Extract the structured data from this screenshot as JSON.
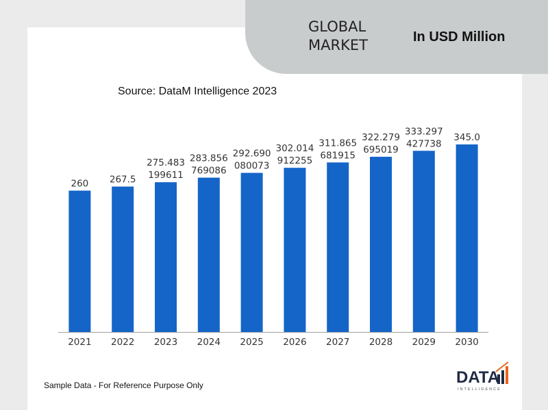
{
  "header": {
    "title_line1": "GLOBAL",
    "title_line2": "MARKET",
    "unit_label": "In USD Million"
  },
  "source_label": "Source: DataM Intelligence 2023",
  "footnote": "Sample Data - For Reference Purpose Only",
  "logo": {
    "text": "DATA",
    "subtext": "INTELLIGENCE",
    "icon": "bar-chart-icon"
  },
  "colors": {
    "bar": "#1565c8",
    "background": "#ebebeb",
    "pill": "#c9cccd",
    "logo_dark": "#1f2a44",
    "logo_accent": "#e8651b"
  },
  "chart_data": {
    "type": "bar",
    "categories": [
      "2021",
      "2022",
      "2023",
      "2024",
      "2025",
      "2026",
      "2027",
      "2028",
      "2029",
      "2030"
    ],
    "values": [
      260,
      267.5,
      275.483199611,
      283.856769086,
      292.690080073,
      302.014912255,
      311.865681915,
      322.279695019,
      333.297427738,
      345.0
    ],
    "data_labels": [
      [
        "260"
      ],
      [
        "267.5"
      ],
      [
        "275.483",
        "199611"
      ],
      [
        "283.856",
        "769086"
      ],
      [
        "292.690",
        "080073"
      ],
      [
        "302.014",
        "912255"
      ],
      [
        "311.865",
        "681915"
      ],
      [
        "322.279",
        "695019"
      ],
      [
        "333.297",
        "427738"
      ],
      [
        "345.0"
      ]
    ],
    "ylim": [
      0,
      345
    ],
    "grid": false,
    "legend": "none"
  }
}
